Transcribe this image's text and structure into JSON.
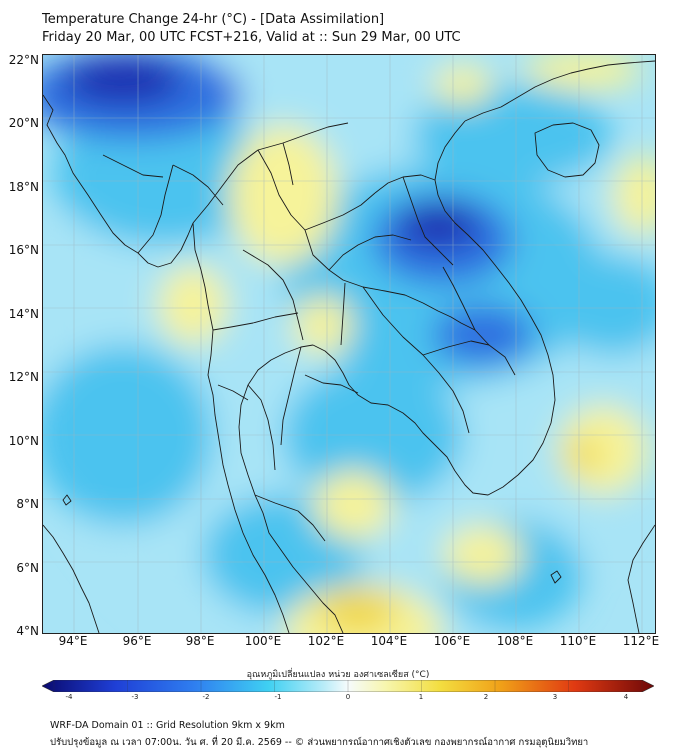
{
  "title_line1": "Temperature Change 24-hr (°C) - [Data Assimilation]",
  "title_line2": "Friday 20 Mar, 00 UTC FCST+216, Valid at :: Sun 29 Mar, 00 UTC",
  "map": {
    "lat_ticks": [
      "22°N",
      "20°N",
      "18°N",
      "16°N",
      "14°N",
      "12°N",
      "10°N",
      "8°N",
      "6°N",
      "4°N"
    ],
    "lon_ticks": [
      "94°E",
      "96°E",
      "98°E",
      "100°E",
      "102°E",
      "104°E",
      "106°E",
      "108°E",
      "110°E",
      "112°E"
    ],
    "extent": {
      "lon_min": 93,
      "lon_max": 112.4,
      "lat_min": 4,
      "lat_max": 22.2
    },
    "colors": {
      "strong_cold": "#1a2fb0",
      "cold": "#2f6fe0",
      "cool": "#4cc3ef",
      "slight_cool": "#a8e4f6",
      "neutral": "#eef9fc",
      "warm": "#f6f39a",
      "warmer": "#f1d84c",
      "coast": "#1b1b1b"
    }
  },
  "colorbar": {
    "label": "อุณหภูมิเปลี่ยนแปลง หน่วย องศาเซลเซียส (°C)",
    "ticks": [
      "-4",
      "-3",
      "-2",
      "-1",
      "0",
      "1",
      "2",
      "3",
      "4"
    ],
    "min": -4,
    "max": 4
  },
  "footer_line1": "WRF-DA Domain 01 :: Grid Resolution 9km x 9km",
  "footer_line2": "ปรับปรุงข้อมูล ณ เวลา 07:00น. วัน ศ. ที่ 20 มี.ค. 2569 -- © ส่วนพยากรณ์อากาศเชิงตัวเลข กองพยากรณ์อากาศ กรมอุตุนิยมวิทยา"
}
